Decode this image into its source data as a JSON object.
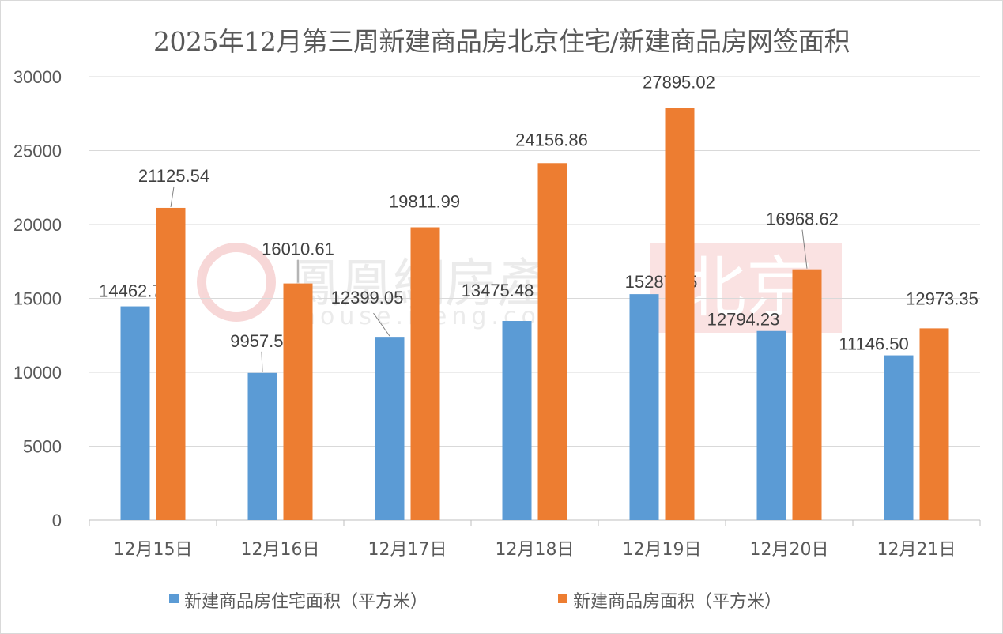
{
  "chart_data": {
    "type": "bar",
    "title": "2025年12月第三周新建商品房北京住宅/新建商品房网签面积",
    "categories": [
      "12月15日",
      "12月16日",
      "12月17日",
      "12月18日",
      "12月19日",
      "12月20日",
      "12月21日"
    ],
    "series": [
      {
        "name": "新建商品房住宅面积（平方米）",
        "color": "#5b9bd5",
        "values": [
          14462.73,
          9957.56,
          12399.05,
          13475.48,
          15287.45,
          12794.23,
          11146.5
        ]
      },
      {
        "name": "新建商品房面积（平方米）",
        "color": "#ed7d31",
        "values": [
          21125.54,
          16010.61,
          19811.99,
          24156.86,
          27895.02,
          16968.62,
          12973.35
        ]
      }
    ],
    "ylim": [
      0,
      30000
    ],
    "yticks": [
      0,
      5000,
      10000,
      15000,
      20000,
      25000,
      30000
    ],
    "grid": true,
    "legend": "bottom",
    "data_labels": true
  },
  "watermark": {
    "brand": "鳳凰網房產",
    "city": "北京",
    "site": "house.ifeng.com"
  }
}
